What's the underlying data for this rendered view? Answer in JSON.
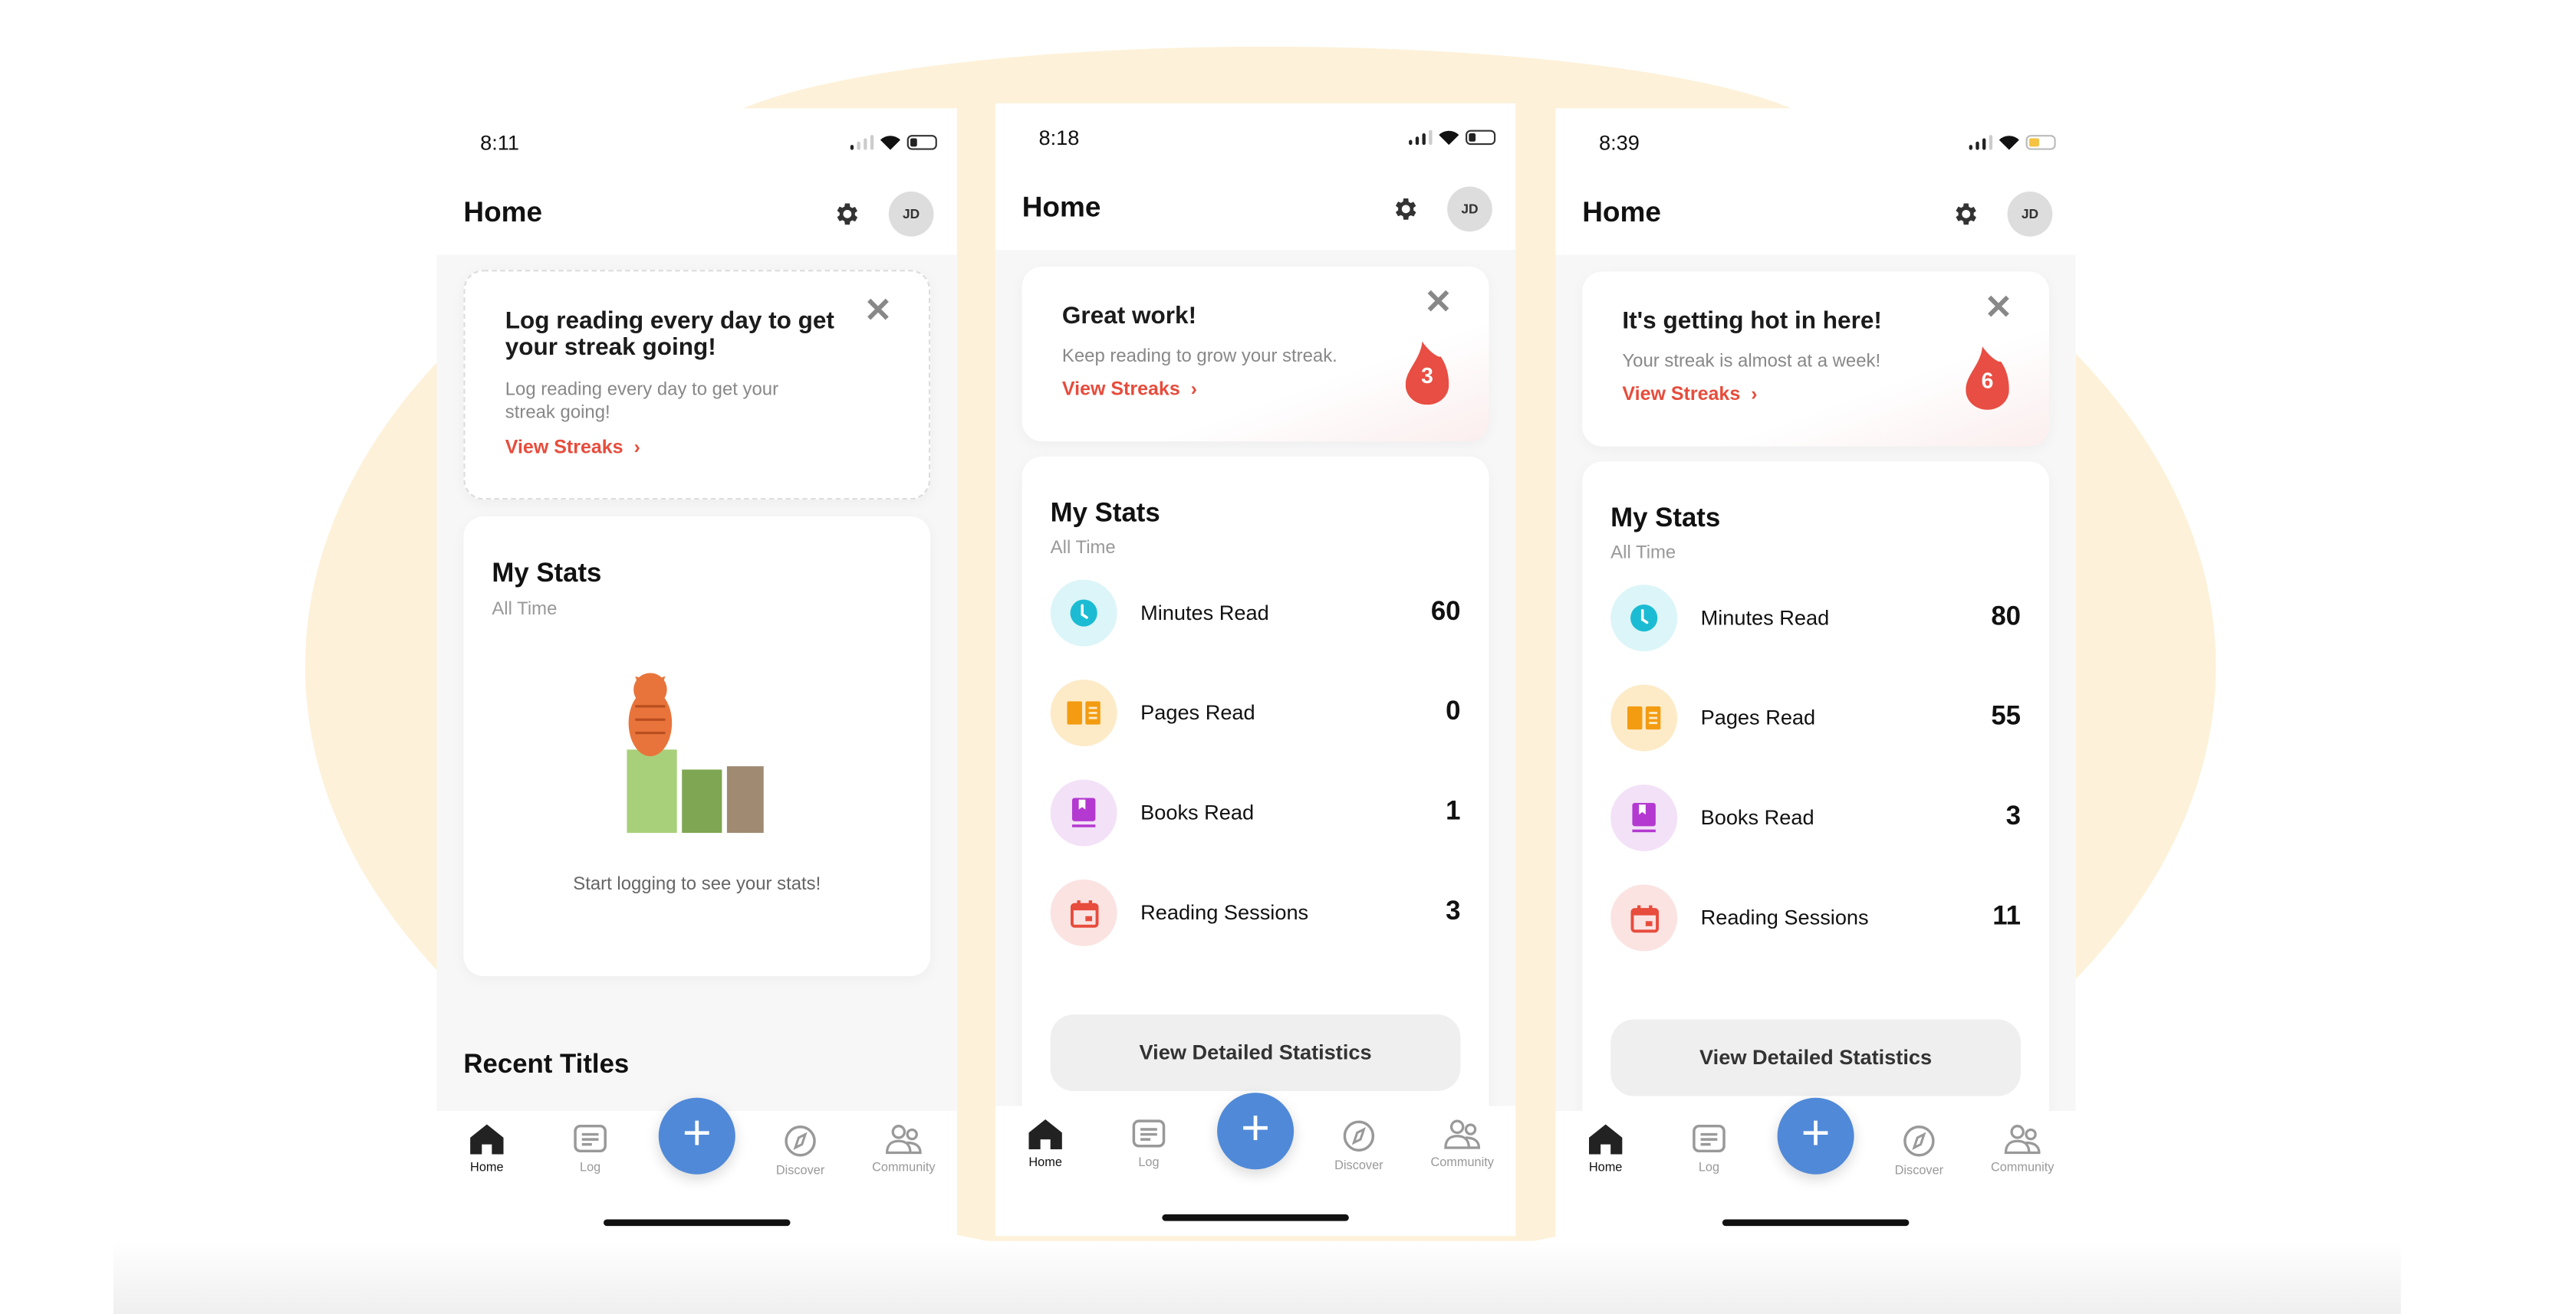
{
  "colors": {
    "accent": "#e74c3c",
    "fab": "#5089d8",
    "background_blob": "#fdf1d9"
  },
  "common": {
    "page_title": "Home",
    "avatar_initials": "JD",
    "view_streaks": "View Streaks",
    "my_stats": "My Stats",
    "all_time": "All Time",
    "view_detailed": "View Detailed Statistics",
    "fab_label": "+",
    "nav": [
      {
        "label": "Home",
        "icon": "home-icon"
      },
      {
        "label": "Log",
        "icon": "log-icon"
      },
      {
        "label": "Discover",
        "icon": "compass-icon"
      },
      {
        "label": "Community",
        "icon": "community-icon"
      }
    ]
  },
  "phones": [
    {
      "time": "8:11",
      "battery": "low",
      "card_title": "Log reading every day to get your streak going!",
      "card_body": "Log reading every day to get your streak going!",
      "empty_stats": "Start logging to see your stats!",
      "recent_titles": "Recent Titles"
    },
    {
      "time": "8:18",
      "battery": "low",
      "card_title": "Great work!",
      "card_body": "Keep reading to grow your streak.",
      "streak_count": "3",
      "stats": [
        {
          "label": "Minutes Read",
          "value": "60",
          "icon": "clock-icon"
        },
        {
          "label": "Pages Read",
          "value": "0",
          "icon": "pages-icon"
        },
        {
          "label": "Books Read",
          "value": "1",
          "icon": "book-icon"
        },
        {
          "label": "Reading Sessions",
          "value": "3",
          "icon": "calendar-icon"
        }
      ]
    },
    {
      "time": "8:39",
      "battery": "yellow",
      "card_title": "It's getting hot in here!",
      "card_body": "Your streak is almost at a week!",
      "streak_count": "6",
      "stats": [
        {
          "label": "Minutes Read",
          "value": "80",
          "icon": "clock-icon"
        },
        {
          "label": "Pages Read",
          "value": "55",
          "icon": "pages-icon"
        },
        {
          "label": "Books Read",
          "value": "3",
          "icon": "book-icon"
        },
        {
          "label": "Reading Sessions",
          "value": "11",
          "icon": "calendar-icon"
        }
      ]
    }
  ]
}
